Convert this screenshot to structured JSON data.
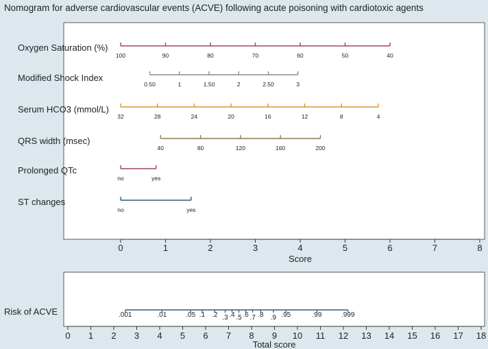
{
  "chart_data": {
    "type": "nomogram",
    "title": "Nomogram for adverse cardiovascular events (ACVE) following acute poisoning with cardiotoxic agents",
    "colors": {
      "background": "#dce8ee",
      "plot_background": "#ffffff",
      "frame": "#333333",
      "text": "#222222"
    },
    "score_axis": {
      "label": "Score",
      "range": [
        0,
        8
      ],
      "ticks": [
        0,
        1,
        2,
        3,
        4,
        5,
        6,
        7,
        8
      ]
    },
    "predictors": [
      {
        "name": "Oxygen Saturation (%)",
        "color": "#a0475a",
        "ticks": [
          {
            "label": "100",
            "score": 0
          },
          {
            "label": "90",
            "score": 1
          },
          {
            "label": "80",
            "score": 2
          },
          {
            "label": "70",
            "score": 3
          },
          {
            "label": "60",
            "score": 4
          },
          {
            "label": "50",
            "score": 5
          },
          {
            "label": "40",
            "score": 6
          }
        ]
      },
      {
        "name": "Modified Shock Index",
        "color": "#8c8c8c",
        "ticks": [
          {
            "label": "0.50",
            "score": 0.65
          },
          {
            "label": "1",
            "score": 1.31
          },
          {
            "label": "1.50",
            "score": 1.97
          },
          {
            "label": "2",
            "score": 2.63
          },
          {
            "label": "2.50",
            "score": 3.29
          },
          {
            "label": "3",
            "score": 3.95
          }
        ]
      },
      {
        "name": "Serum HCO3 (mmol/L)",
        "color": "#d4962c",
        "ticks": [
          {
            "label": "32",
            "score": 0
          },
          {
            "label": "28",
            "score": 0.82
          },
          {
            "label": "24",
            "score": 1.64
          },
          {
            "label": "20",
            "score": 2.46
          },
          {
            "label": "16",
            "score": 3.28
          },
          {
            "label": "12",
            "score": 4.1
          },
          {
            "label": "8",
            "score": 4.92
          },
          {
            "label": "4",
            "score": 5.74
          }
        ]
      },
      {
        "name": "QRS width (msec)",
        "color": "#8f7a52",
        "ticks": [
          {
            "label": "40",
            "score": 0.89
          },
          {
            "label": "80",
            "score": 1.78
          },
          {
            "label": "120",
            "score": 2.67
          },
          {
            "label": "160",
            "score": 3.56
          },
          {
            "label": "200",
            "score": 4.45
          }
        ]
      },
      {
        "name": "Prolonged QTc",
        "color": "#a0475a",
        "ticks": [
          {
            "label": "no",
            "score": 0
          },
          {
            "label": "yes",
            "score": 0.79
          }
        ]
      },
      {
        "name": "ST changes",
        "color": "#2f5a73",
        "ticks": [
          {
            "label": "no",
            "score": 0
          },
          {
            "label": "yes",
            "score": 1.57
          }
        ]
      }
    ],
    "total_axis": {
      "label": "Total score",
      "range": [
        0,
        18
      ],
      "ticks": [
        0,
        1,
        2,
        3,
        4,
        5,
        6,
        7,
        8,
        9,
        10,
        11,
        12,
        13,
        14,
        15,
        16,
        17,
        18
      ]
    },
    "risk_scale": {
      "name": "Risk of ACVE",
      "color": "#2f5a73",
      "line_range": [
        2.5,
        12.2
      ],
      "ticks": [
        {
          "label": ".001",
          "total": 2.5,
          "row": 0
        },
        {
          "label": ".01",
          "total": 4.1,
          "row": 0
        },
        {
          "label": ".05",
          "total": 5.35,
          "row": 0
        },
        {
          "label": ".1",
          "total": 5.85,
          "row": 0
        },
        {
          "label": ".2",
          "total": 6.4,
          "row": 0
        },
        {
          "label": ".3",
          "total": 6.85,
          "row": 1
        },
        {
          "label": ".4",
          "total": 7.15,
          "row": 0
        },
        {
          "label": ".5",
          "total": 7.45,
          "row": 1
        },
        {
          "label": ".6",
          "total": 7.75,
          "row": 0
        },
        {
          "label": ".7",
          "total": 8.05,
          "row": 1
        },
        {
          "label": ".8",
          "total": 8.4,
          "row": 0
        },
        {
          "label": ".9",
          "total": 8.95,
          "row": 1
        },
        {
          "label": ".95",
          "total": 9.5,
          "row": 0
        },
        {
          "label": ".99",
          "total": 10.85,
          "row": 0
        },
        {
          "label": ".999",
          "total": 12.2,
          "row": 0
        }
      ]
    }
  }
}
